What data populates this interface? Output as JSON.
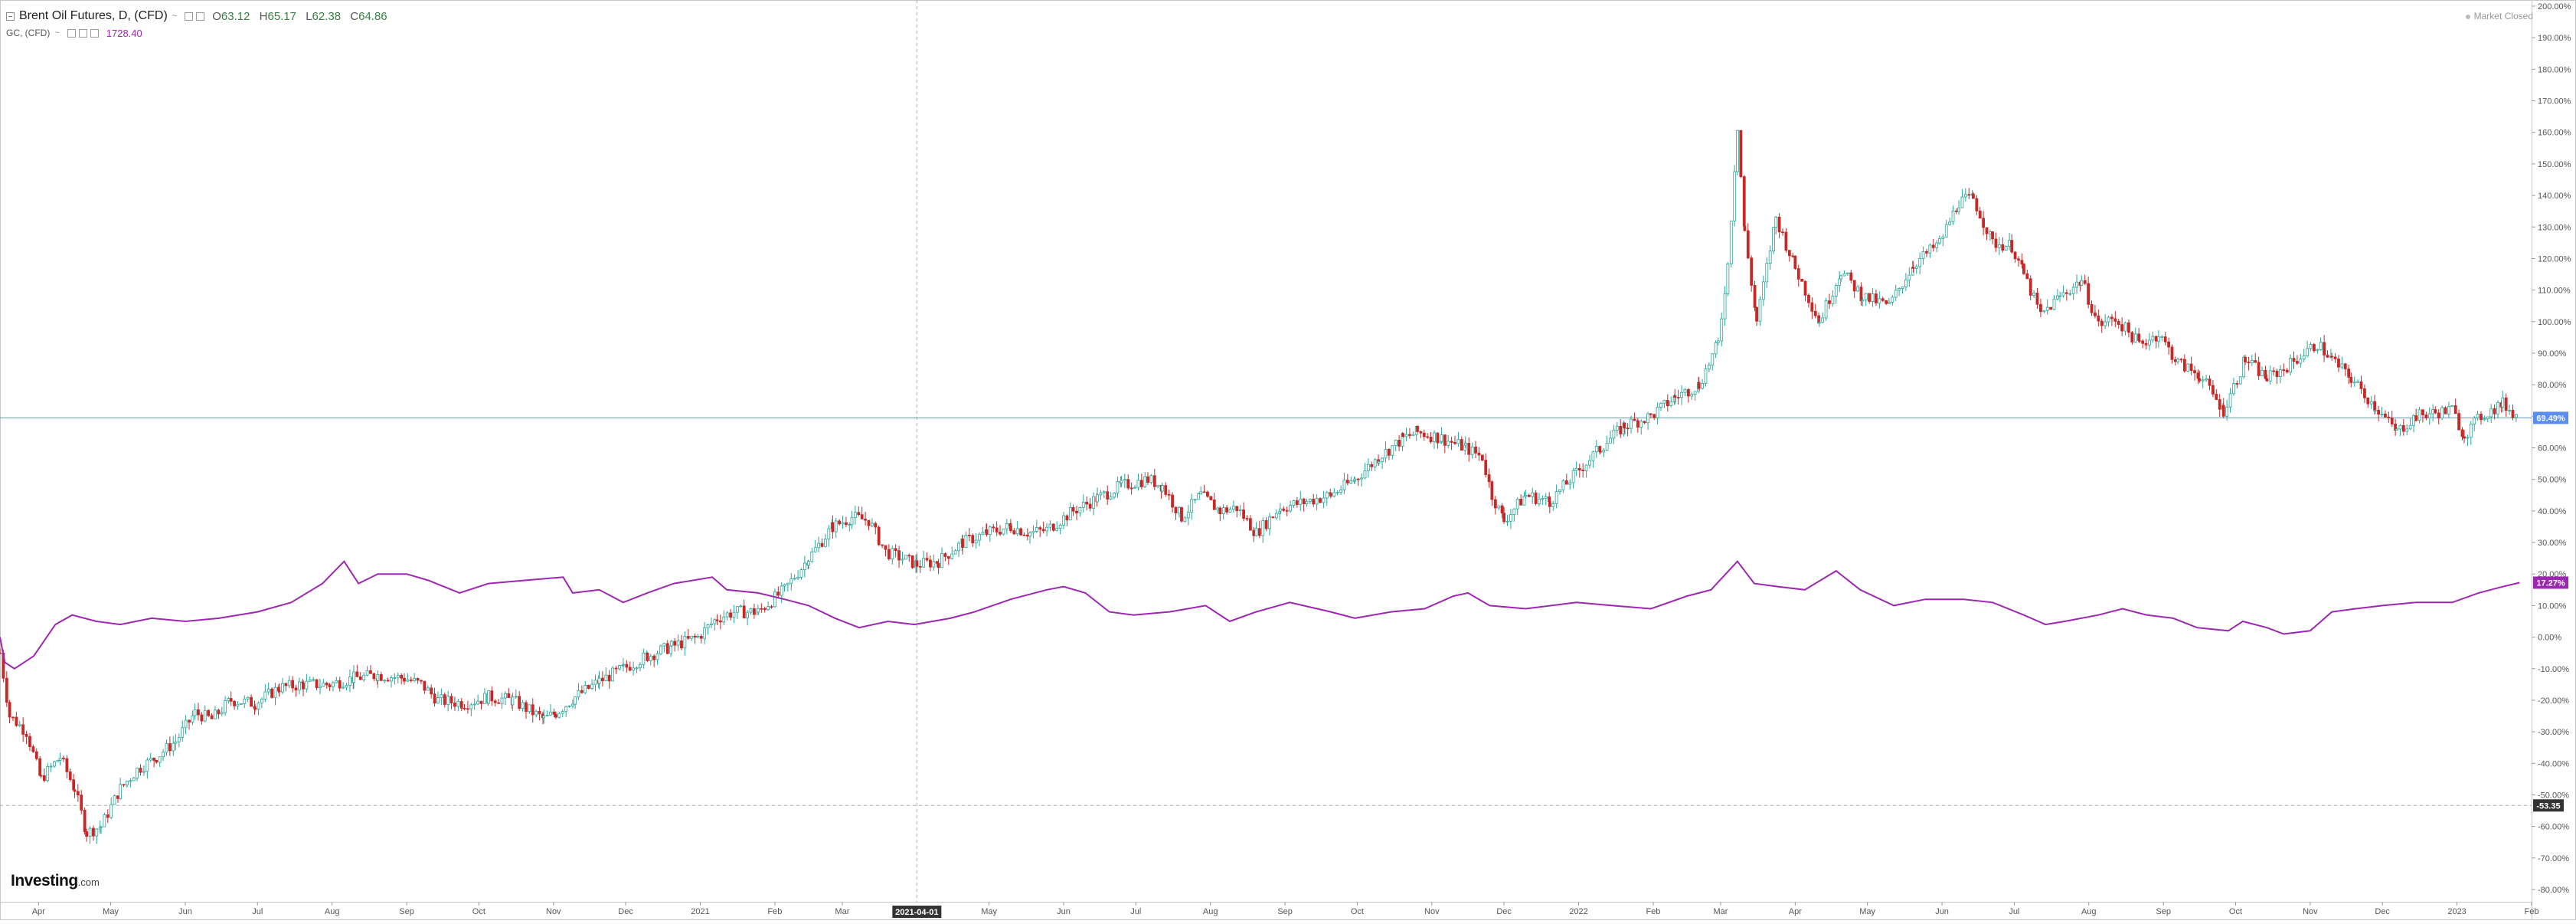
{
  "legend": {
    "main": {
      "title": "Brent Oil Futures, D, (CFD)",
      "caret": "~",
      "o_label": "O",
      "o_value": "63.12",
      "h_label": "H",
      "h_value": "65.17",
      "l_label": "L",
      "l_value": "62.38",
      "c_label": "C",
      "c_value": "64.86"
    },
    "secondary": {
      "title": "GC, (CFD)",
      "caret": "~",
      "value": "1728.40"
    }
  },
  "status": {
    "market": "Market Closed"
  },
  "branding": {
    "name": "Investing",
    "domain": ".com"
  },
  "colors": {
    "up": "#26a69a",
    "down": "#c62828",
    "gold_line": "#9c27b0",
    "crosshair_level": "#5b8def",
    "axis_text": "#555555",
    "price_badge_bg": "#333333"
  },
  "chart_data": {
    "type": "line",
    "x_range": [
      "2020-03-16",
      "2023-02-01"
    ],
    "y_axis": {
      "unit": "%",
      "min": -80,
      "max": 200,
      "tick_step": 10,
      "position": "right"
    },
    "x_ticks": [
      {
        "date": "2020-04-01",
        "label": "Apr"
      },
      {
        "date": "2020-05-01",
        "label": "May"
      },
      {
        "date": "2020-06-01",
        "label": "Jun"
      },
      {
        "date": "2020-07-01",
        "label": "Jul"
      },
      {
        "date": "2020-08-01",
        "label": "Aug"
      },
      {
        "date": "2020-09-01",
        "label": "Sep"
      },
      {
        "date": "2020-10-01",
        "label": "Oct"
      },
      {
        "date": "2020-11-01",
        "label": "Nov"
      },
      {
        "date": "2020-12-01",
        "label": "Dec"
      },
      {
        "date": "2021-01-01",
        "label": "2021"
      },
      {
        "date": "2021-02-01",
        "label": "Feb"
      },
      {
        "date": "2021-03-01",
        "label": "Mar"
      },
      {
        "date": "2021-05-01",
        "label": "May"
      },
      {
        "date": "2021-06-01",
        "label": "Jun"
      },
      {
        "date": "2021-07-01",
        "label": "Jul"
      },
      {
        "date": "2021-08-01",
        "label": "Aug"
      },
      {
        "date": "2021-09-01",
        "label": "Sep"
      },
      {
        "date": "2021-10-01",
        "label": "Oct"
      },
      {
        "date": "2021-11-01",
        "label": "Nov"
      },
      {
        "date": "2021-12-01",
        "label": "Dec"
      },
      {
        "date": "2022-01-01",
        "label": "2022"
      },
      {
        "date": "2022-02-01",
        "label": "Feb"
      },
      {
        "date": "2022-03-01",
        "label": "Mar"
      },
      {
        "date": "2022-04-01",
        "label": "Apr"
      },
      {
        "date": "2022-05-01",
        "label": "May"
      },
      {
        "date": "2022-06-01",
        "label": "Jun"
      },
      {
        "date": "2022-07-01",
        "label": "Jul"
      },
      {
        "date": "2022-08-01",
        "label": "Aug"
      },
      {
        "date": "2022-09-01",
        "label": "Sep"
      },
      {
        "date": "2022-10-01",
        "label": "Oct"
      },
      {
        "date": "2022-11-01",
        "label": "Nov"
      },
      {
        "date": "2022-12-01",
        "label": "Dec"
      },
      {
        "date": "2023-01-01",
        "label": "2023"
      },
      {
        "date": "2023-02-01",
        "label": "Feb"
      }
    ],
    "crosshair": {
      "x_date": "2021-04-01",
      "x_label": "2021-04-01",
      "y_value": -53.35,
      "y_label": "-53.35"
    },
    "horizontal_line": {
      "value": 69.49,
      "label": "69.49%"
    },
    "series": [
      {
        "style": "candlestick",
        "last_label": "69.49%",
        "points": [
          [
            "2020-03-16",
            -5
          ],
          [
            "2020-03-20",
            -25
          ],
          [
            "2020-03-27",
            -30
          ],
          [
            "2020-04-02",
            -45
          ],
          [
            "2020-04-10",
            -38
          ],
          [
            "2020-04-16",
            -48
          ],
          [
            "2020-04-21",
            -62
          ],
          [
            "2020-04-27",
            -60
          ],
          [
            "2020-05-05",
            -48
          ],
          [
            "2020-05-12",
            -42
          ],
          [
            "2020-05-20",
            -38
          ],
          [
            "2020-05-28",
            -33
          ],
          [
            "2020-06-05",
            -24
          ],
          [
            "2020-06-12",
            -26
          ],
          [
            "2020-06-20",
            -20
          ],
          [
            "2020-06-30",
            -21
          ],
          [
            "2020-07-10",
            -16
          ],
          [
            "2020-07-20",
            -15
          ],
          [
            "2020-07-31",
            -15
          ],
          [
            "2020-08-10",
            -13
          ],
          [
            "2020-08-20",
            -12
          ],
          [
            "2020-08-31",
            -13
          ],
          [
            "2020-09-07",
            -15
          ],
          [
            "2020-09-14",
            -20
          ],
          [
            "2020-09-25",
            -21
          ],
          [
            "2020-10-05",
            -19
          ],
          [
            "2020-10-15",
            -20
          ],
          [
            "2020-10-28",
            -26
          ],
          [
            "2020-11-02",
            -24
          ],
          [
            "2020-11-10",
            -19
          ],
          [
            "2020-11-20",
            -14
          ],
          [
            "2020-11-30",
            -10
          ],
          [
            "2020-12-10",
            -6
          ],
          [
            "2020-12-20",
            -3
          ],
          [
            "2020-12-31",
            0
          ],
          [
            "2021-01-08",
            6
          ],
          [
            "2021-01-15",
            8
          ],
          [
            "2021-01-25",
            8
          ],
          [
            "2021-02-05",
            15
          ],
          [
            "2021-02-15",
            25
          ],
          [
            "2021-02-25",
            35
          ],
          [
            "2021-03-05",
            38
          ],
          [
            "2021-03-12",
            37
          ],
          [
            "2021-03-19",
            27
          ],
          [
            "2021-03-26",
            25
          ],
          [
            "2021-04-01",
            23
          ],
          [
            "2021-04-10",
            24
          ],
          [
            "2021-04-20",
            30
          ],
          [
            "2021-04-30",
            33
          ],
          [
            "2021-05-10",
            35
          ],
          [
            "2021-05-18",
            33
          ],
          [
            "2021-05-25",
            34
          ],
          [
            "2021-06-05",
            40
          ],
          [
            "2021-06-15",
            44
          ],
          [
            "2021-06-25",
            48
          ],
          [
            "2021-07-06",
            50
          ],
          [
            "2021-07-12",
            48
          ],
          [
            "2021-07-20",
            38
          ],
          [
            "2021-07-28",
            45
          ],
          [
            "2021-08-05",
            40
          ],
          [
            "2021-08-12",
            41
          ],
          [
            "2021-08-20",
            33
          ],
          [
            "2021-08-30",
            41
          ],
          [
            "2021-09-10",
            43
          ],
          [
            "2021-09-20",
            45
          ],
          [
            "2021-09-30",
            50
          ],
          [
            "2021-10-10",
            57
          ],
          [
            "2021-10-20",
            63
          ],
          [
            "2021-10-26",
            65
          ],
          [
            "2021-11-05",
            63
          ],
          [
            "2021-11-15",
            60
          ],
          [
            "2021-11-22",
            57
          ],
          [
            "2021-11-26",
            45
          ],
          [
            "2021-12-01",
            37
          ],
          [
            "2021-12-10",
            45
          ],
          [
            "2021-12-20",
            43
          ],
          [
            "2021-12-31",
            52
          ],
          [
            "2022-01-10",
            60
          ],
          [
            "2022-01-20",
            67
          ],
          [
            "2022-01-31",
            70
          ],
          [
            "2022-02-10",
            76
          ],
          [
            "2022-02-20",
            80
          ],
          [
            "2022-02-28",
            93
          ],
          [
            "2022-03-04",
            118
          ],
          [
            "2022-03-08",
            162
          ],
          [
            "2022-03-11",
            128
          ],
          [
            "2022-03-16",
            100
          ],
          [
            "2022-03-24",
            133
          ],
          [
            "2022-04-01",
            117
          ],
          [
            "2022-04-11",
            100
          ],
          [
            "2022-04-20",
            116
          ],
          [
            "2022-04-29",
            108
          ],
          [
            "2022-05-10",
            105
          ],
          [
            "2022-05-20",
            118
          ],
          [
            "2022-05-31",
            125
          ],
          [
            "2022-06-08",
            138
          ],
          [
            "2022-06-14",
            139
          ],
          [
            "2022-06-22",
            125
          ],
          [
            "2022-06-30",
            124
          ],
          [
            "2022-07-05",
            115
          ],
          [
            "2022-07-12",
            102
          ],
          [
            "2022-07-20",
            108
          ],
          [
            "2022-07-29",
            113
          ],
          [
            "2022-08-05",
            99
          ],
          [
            "2022-08-12",
            101
          ],
          [
            "2022-08-22",
            93
          ],
          [
            "2022-08-30",
            96
          ],
          [
            "2022-09-07",
            87
          ],
          [
            "2022-09-16",
            83
          ],
          [
            "2022-09-26",
            72
          ],
          [
            "2022-10-05",
            88
          ],
          [
            "2022-10-14",
            82
          ],
          [
            "2022-10-21",
            85
          ],
          [
            "2022-11-04",
            93
          ],
          [
            "2022-11-10",
            88
          ],
          [
            "2022-11-18",
            82
          ],
          [
            "2022-11-28",
            73
          ],
          [
            "2022-12-07",
            65
          ],
          [
            "2022-12-15",
            70
          ],
          [
            "2022-12-23",
            71
          ],
          [
            "2022-12-30",
            72
          ],
          [
            "2023-01-04",
            64
          ],
          [
            "2023-01-11",
            70
          ],
          [
            "2023-01-20",
            74
          ],
          [
            "2023-01-27",
            69.49
          ]
        ]
      },
      {
        "style": "line",
        "last_label": "17.27%",
        "points": [
          [
            "2020-03-16",
            0
          ],
          [
            "2020-03-18",
            -8
          ],
          [
            "2020-03-22",
            -10
          ],
          [
            "2020-03-30",
            -6
          ],
          [
            "2020-04-08",
            4
          ],
          [
            "2020-04-15",
            7
          ],
          [
            "2020-04-25",
            5
          ],
          [
            "2020-05-05",
            4
          ],
          [
            "2020-05-18",
            6
          ],
          [
            "2020-06-01",
            5
          ],
          [
            "2020-06-15",
            6
          ],
          [
            "2020-07-01",
            8
          ],
          [
            "2020-07-15",
            11
          ],
          [
            "2020-07-28",
            17
          ],
          [
            "2020-08-06",
            24
          ],
          [
            "2020-08-12",
            17
          ],
          [
            "2020-08-20",
            20
          ],
          [
            "2020-09-01",
            20
          ],
          [
            "2020-09-10",
            18
          ],
          [
            "2020-09-23",
            14
          ],
          [
            "2020-10-05",
            17
          ],
          [
            "2020-10-20",
            18
          ],
          [
            "2020-11-05",
            19
          ],
          [
            "2020-11-09",
            14
          ],
          [
            "2020-11-20",
            15
          ],
          [
            "2020-11-30",
            11
          ],
          [
            "2020-12-10",
            14
          ],
          [
            "2020-12-21",
            17
          ],
          [
            "2021-01-06",
            19
          ],
          [
            "2021-01-12",
            15
          ],
          [
            "2021-01-25",
            14
          ],
          [
            "2021-02-05",
            12
          ],
          [
            "2021-02-15",
            10
          ],
          [
            "2021-02-26",
            6
          ],
          [
            "2021-03-08",
            3
          ],
          [
            "2021-03-20",
            5
          ],
          [
            "2021-03-31",
            4
          ],
          [
            "2021-04-15",
            6
          ],
          [
            "2021-04-25",
            8
          ],
          [
            "2021-05-10",
            12
          ],
          [
            "2021-05-25",
            15
          ],
          [
            "2021-06-01",
            16
          ],
          [
            "2021-06-10",
            14
          ],
          [
            "2021-06-20",
            8
          ],
          [
            "2021-06-30",
            7
          ],
          [
            "2021-07-15",
            8
          ],
          [
            "2021-07-30",
            10
          ],
          [
            "2021-08-09",
            5
          ],
          [
            "2021-08-20",
            8
          ],
          [
            "2021-09-03",
            11
          ],
          [
            "2021-09-20",
            8
          ],
          [
            "2021-09-30",
            6
          ],
          [
            "2021-10-15",
            8
          ],
          [
            "2021-10-29",
            9
          ],
          [
            "2021-11-10",
            13
          ],
          [
            "2021-11-16",
            14
          ],
          [
            "2021-11-25",
            10
          ],
          [
            "2021-12-10",
            9
          ],
          [
            "2021-12-31",
            11
          ],
          [
            "2022-01-15",
            10
          ],
          [
            "2022-01-31",
            9
          ],
          [
            "2022-02-15",
            13
          ],
          [
            "2022-02-25",
            15
          ],
          [
            "2022-03-08",
            24
          ],
          [
            "2022-03-15",
            17
          ],
          [
            "2022-03-25",
            16
          ],
          [
            "2022-04-05",
            15
          ],
          [
            "2022-04-18",
            21
          ],
          [
            "2022-04-28",
            15
          ],
          [
            "2022-05-12",
            10
          ],
          [
            "2022-05-25",
            12
          ],
          [
            "2022-06-10",
            12
          ],
          [
            "2022-06-22",
            11
          ],
          [
            "2022-07-05",
            7
          ],
          [
            "2022-07-14",
            4
          ],
          [
            "2022-07-22",
            5
          ],
          [
            "2022-08-05",
            7
          ],
          [
            "2022-08-15",
            9
          ],
          [
            "2022-08-25",
            7
          ],
          [
            "2022-09-05",
            6
          ],
          [
            "2022-09-15",
            3
          ],
          [
            "2022-09-28",
            2
          ],
          [
            "2022-10-04",
            5
          ],
          [
            "2022-10-14",
            3
          ],
          [
            "2022-10-21",
            1
          ],
          [
            "2022-11-01",
            2
          ],
          [
            "2022-11-04",
            4
          ],
          [
            "2022-11-10",
            8
          ],
          [
            "2022-11-20",
            9
          ],
          [
            "2022-12-01",
            10
          ],
          [
            "2022-12-15",
            11
          ],
          [
            "2022-12-30",
            11
          ],
          [
            "2023-01-10",
            14
          ],
          [
            "2023-01-20",
            16
          ],
          [
            "2023-01-27",
            17.27
          ]
        ]
      }
    ]
  }
}
